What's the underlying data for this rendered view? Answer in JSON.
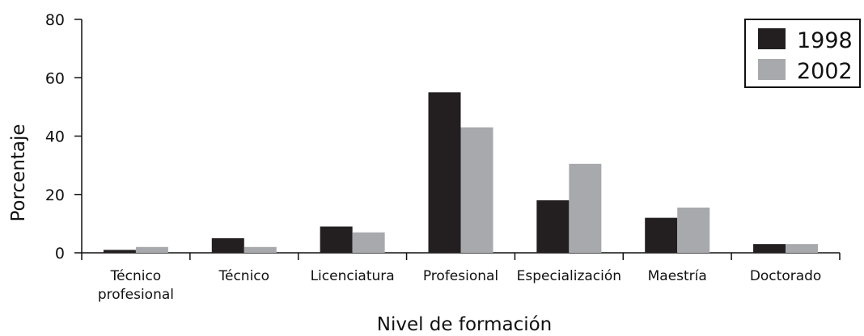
{
  "chart_data": {
    "type": "bar",
    "title": "",
    "xlabel": "Nivel de formación",
    "ylabel": "Porcentaje",
    "ylim": [
      0,
      80
    ],
    "yticks": [
      0,
      20,
      40,
      60,
      80
    ],
    "grid": false,
    "legend_position": "top-right",
    "categories": [
      [
        "Técnico",
        "profesional"
      ],
      [
        "Técnico"
      ],
      [
        "Licenciatura"
      ],
      [
        "Profesional"
      ],
      [
        "Especialización"
      ],
      [
        "Maestría"
      ],
      [
        "Doctorado"
      ]
    ],
    "series": [
      {
        "name": "1998",
        "color": "#231f20",
        "values": [
          1,
          5,
          9,
          55,
          18,
          12,
          3
        ]
      },
      {
        "name": "2002",
        "color": "#a7a9ac",
        "values": [
          2,
          2,
          7,
          43,
          30.5,
          15.5,
          3
        ]
      }
    ]
  }
}
